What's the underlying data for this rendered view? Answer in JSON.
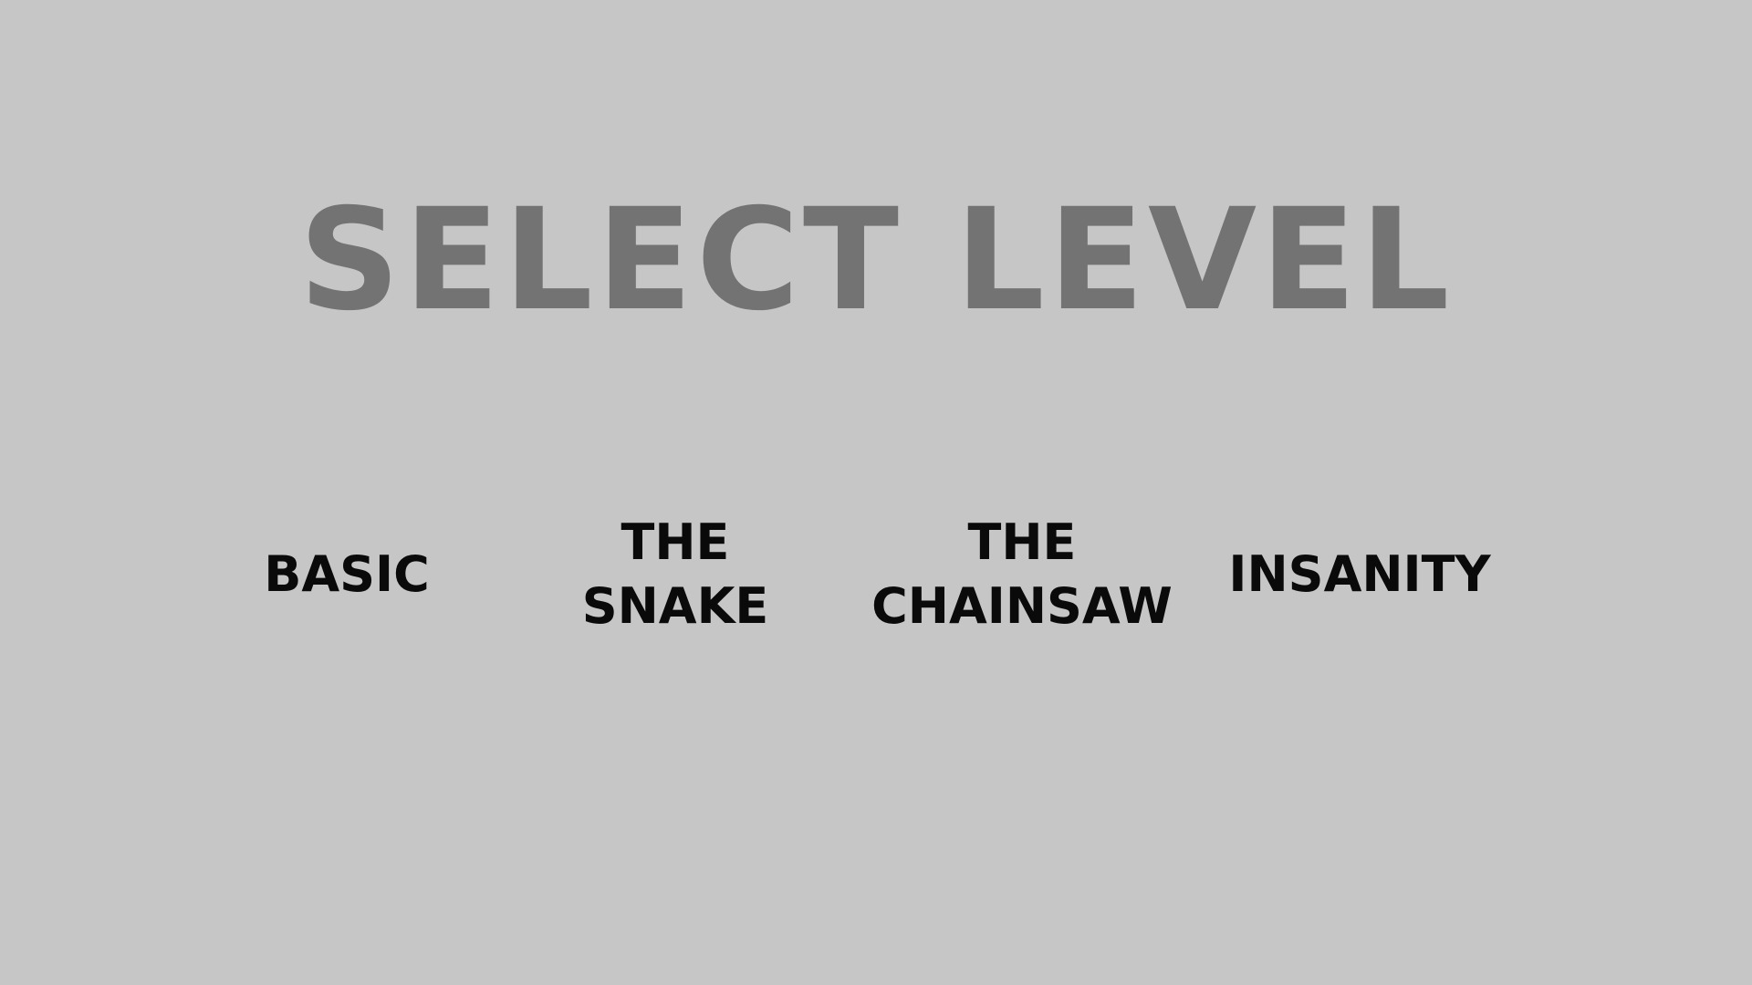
{
  "screen": {
    "title": "SELECT LEVEL",
    "background_color": "#c6c6c6",
    "title_color": "#737373",
    "option_color": "#0a0a0a"
  },
  "levels": [
    {
      "line1": "BASIC",
      "line2": ""
    },
    {
      "line1": "THE",
      "line2": "SNAKE"
    },
    {
      "line1": "THE",
      "line2": "CHAINSAW"
    },
    {
      "line1": "INSANITY",
      "line2": ""
    }
  ]
}
